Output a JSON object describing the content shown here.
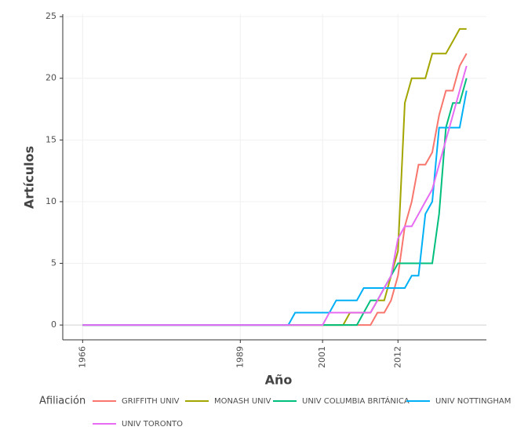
{
  "chart_data": {
    "type": "line",
    "x_label": "Año",
    "y_label": "Artículos",
    "legend_title": "Afiliación",
    "x": [
      1966,
      1996,
      1997,
      1998,
      1999,
      2000,
      2001,
      2002,
      2003,
      2004,
      2005,
      2006,
      2007,
      2008,
      2009,
      2010,
      2011,
      2012,
      2013,
      2014,
      2015,
      2016,
      2017,
      2018,
      2019,
      2020,
      2021,
      2022
    ],
    "series": [
      {
        "name": "GRIFFITH UNIV",
        "color": "#F8766D",
        "values": [
          0,
          0,
          0,
          0,
          0,
          0,
          0,
          0,
          0,
          0,
          0,
          0,
          0,
          0,
          1,
          1,
          2,
          4,
          8,
          10,
          13,
          13,
          14,
          17,
          19,
          19,
          21,
          22
        ]
      },
      {
        "name": "MONASH UNIV",
        "color": "#A3A500",
        "values": [
          0,
          0,
          0,
          0,
          0,
          0,
          0,
          0,
          0,
          0,
          1,
          1,
          1,
          1,
          2,
          2,
          4,
          6,
          18,
          20,
          20,
          20,
          22,
          22,
          22,
          23,
          24,
          24
        ]
      },
      {
        "name": "UNIV COLUMBIA BRITÁNICA",
        "color": "#00BF7D",
        "values": [
          0,
          0,
          0,
          0,
          0,
          0,
          0,
          0,
          0,
          0,
          0,
          0,
          1,
          2,
          2,
          3,
          4,
          5,
          5,
          5,
          5,
          5,
          5,
          9,
          16,
          18,
          18,
          20
        ]
      },
      {
        "name": "UNIV NOTTINGHAM",
        "color": "#00B0F6",
        "values": [
          0,
          0,
          1,
          1,
          1,
          1,
          1,
          1,
          2,
          2,
          2,
          2,
          3,
          3,
          3,
          3,
          3,
          3,
          3,
          4,
          4,
          9,
          10,
          16,
          16,
          16,
          16,
          19
        ]
      },
      {
        "name": "UNIV TORONTO",
        "color": "#E76BF3",
        "values": [
          0,
          0,
          0,
          0,
          0,
          0,
          0,
          1,
          1,
          1,
          1,
          1,
          1,
          1,
          2,
          3,
          4,
          7,
          8,
          8,
          9,
          10,
          11,
          13,
          15,
          17,
          19,
          21
        ]
      }
    ],
    "xlim": [
      1963.1,
      2024.9
    ],
    "xticks": [
      1966,
      1989,
      2001,
      2012
    ],
    "ylim": [
      -1.2,
      25.2
    ],
    "yticks": [
      0,
      5,
      10,
      15,
      20,
      25
    ],
    "grid": true,
    "legend": "bottom"
  }
}
